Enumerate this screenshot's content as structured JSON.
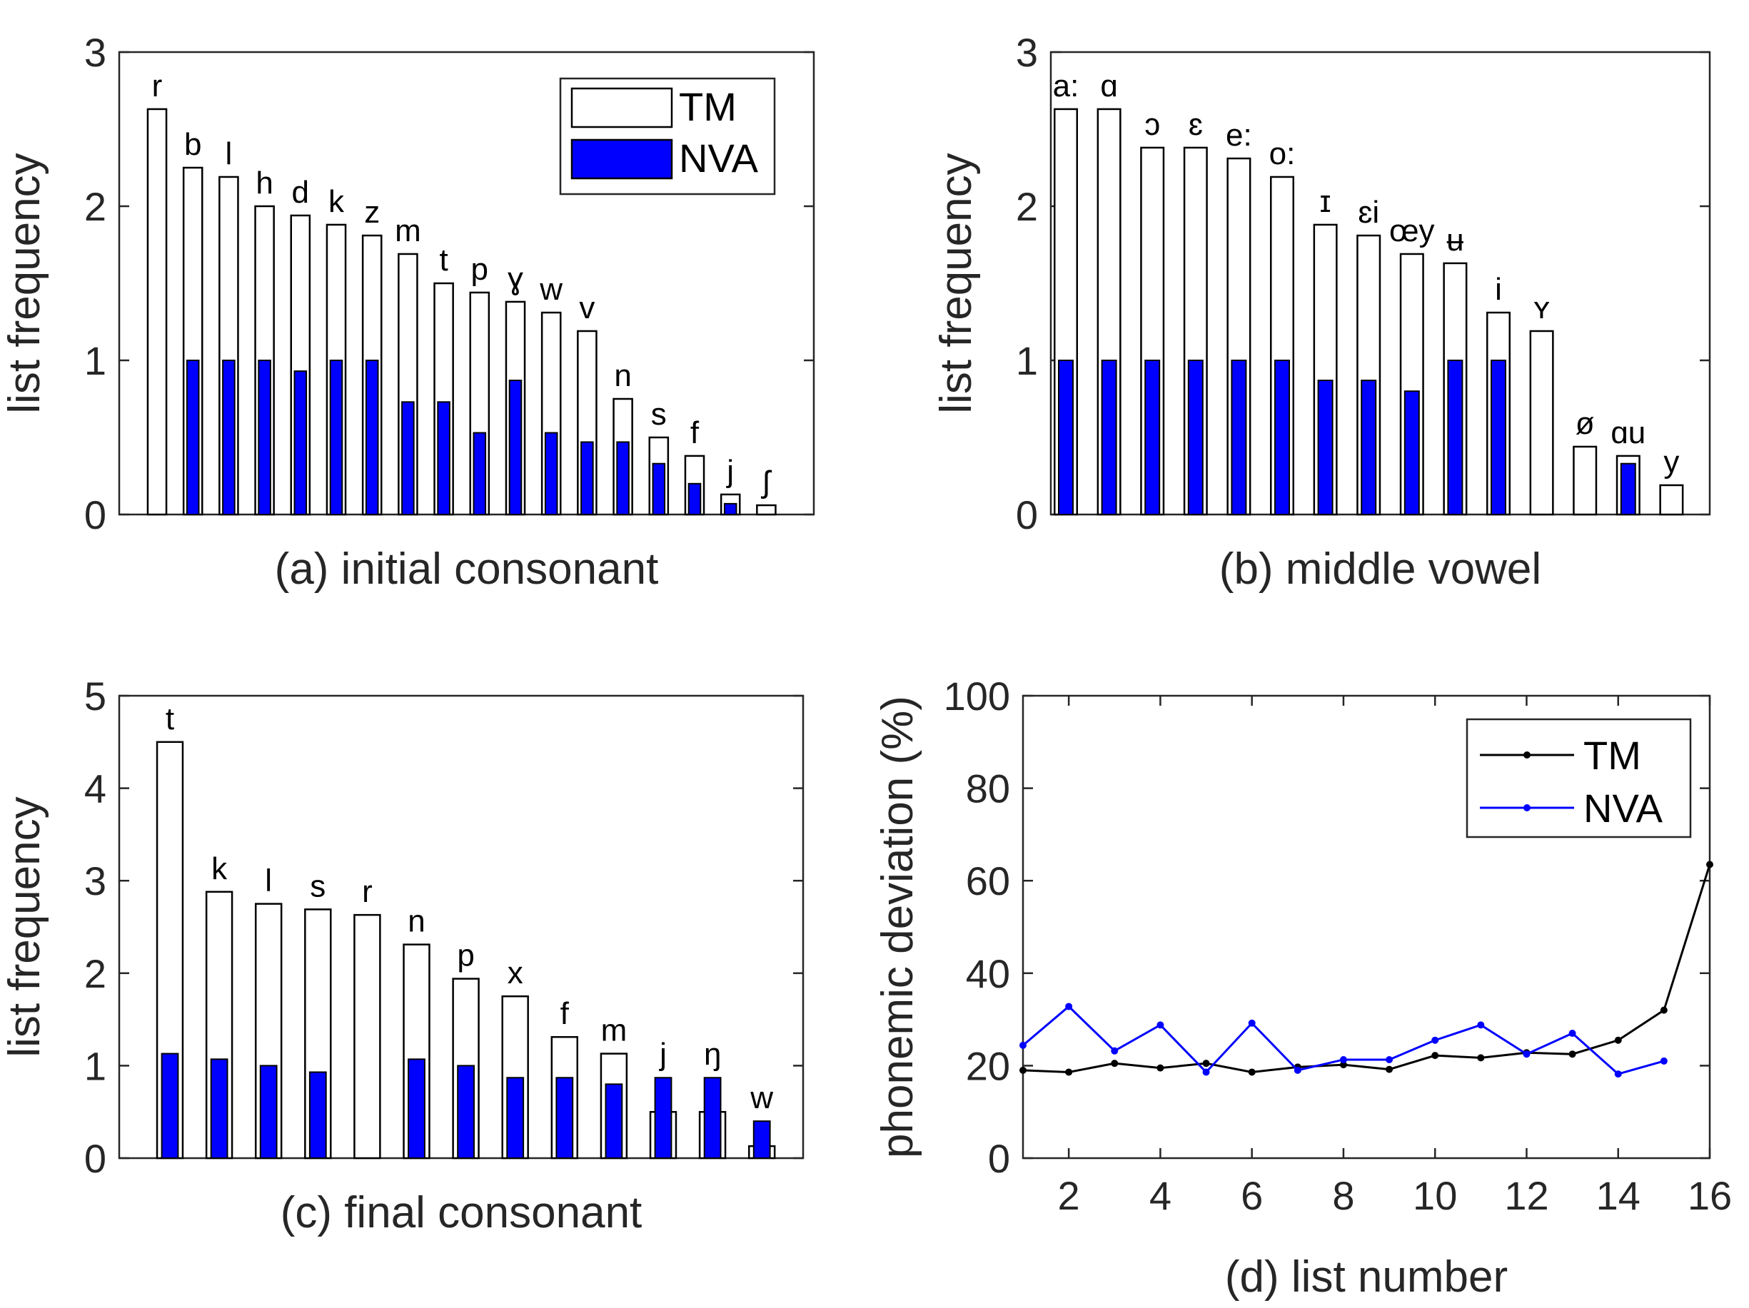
{
  "chart_data": [
    {
      "id": "a",
      "type": "bar",
      "xlabel": "(a) initial consonant",
      "ylabel": "list frequency",
      "ylim": [
        0,
        3
      ],
      "yticks": [
        0,
        1,
        2,
        3
      ],
      "legend_position": "top-right",
      "categories": [
        "r",
        "b",
        "l",
        "h",
        "d",
        "k",
        "z",
        "m",
        "t",
        "p",
        "ɣ",
        "w",
        "v",
        "n",
        "s",
        "f",
        "j",
        "ʃ"
      ],
      "series": [
        {
          "name": "TM",
          "color": "#ffffff",
          "values": [
            2.63,
            2.25,
            2.19,
            2.0,
            1.94,
            1.88,
            1.81,
            1.69,
            1.5,
            1.44,
            1.38,
            1.31,
            1.19,
            0.75,
            0.5,
            0.38,
            0.13,
            0.06
          ]
        },
        {
          "name": "NVA",
          "color": "#0000ff",
          "values": [
            0,
            1.0,
            1.0,
            1.0,
            0.93,
            1.0,
            1.0,
            0.73,
            0.73,
            0.53,
            0.87,
            0.53,
            0.47,
            0.47,
            0.33,
            0.2,
            0.07,
            0
          ]
        }
      ]
    },
    {
      "id": "b",
      "type": "bar",
      "xlabel": "(b) middle vowel",
      "ylabel": "list frequency",
      "ylim": [
        0,
        3
      ],
      "yticks": [
        0,
        1,
        2,
        3
      ],
      "categories": [
        "a:",
        "ɑ",
        "ɔ",
        "ɛ",
        "e:",
        "o:",
        "ɪ",
        "ɛi",
        "œy",
        "ʉ",
        "i",
        "ʏ",
        "ø",
        "ɑu",
        "y"
      ],
      "series": [
        {
          "name": "TM",
          "color": "#ffffff",
          "values": [
            2.63,
            2.63,
            2.38,
            2.38,
            2.31,
            2.19,
            1.88,
            1.81,
            1.69,
            1.63,
            1.31,
            1.19,
            0.44,
            0.38,
            0.19
          ]
        },
        {
          "name": "NVA",
          "color": "#0000ff",
          "values": [
            1.0,
            1.0,
            1.0,
            1.0,
            1.0,
            1.0,
            0.87,
            0.87,
            0.8,
            1.0,
            1.0,
            0,
            0,
            0.33,
            0
          ]
        }
      ]
    },
    {
      "id": "c",
      "type": "bar",
      "xlabel": "(c) final consonant",
      "ylabel": "list frequency",
      "ylim": [
        0,
        5
      ],
      "yticks": [
        0,
        1,
        2,
        3,
        4,
        5
      ],
      "categories": [
        "t",
        "k",
        "l",
        "s",
        "r",
        "n",
        "p",
        "x",
        "f",
        "m",
        "j",
        "ŋ",
        "w"
      ],
      "series": [
        {
          "name": "TM",
          "color": "#ffffff",
          "values": [
            4.5,
            2.88,
            2.75,
            2.69,
            2.63,
            2.31,
            1.94,
            1.75,
            1.31,
            1.13,
            0.5,
            0.5,
            0.13
          ]
        },
        {
          "name": "NVA",
          "color": "#0000ff",
          "values": [
            1.13,
            1.07,
            1.0,
            0.93,
            0,
            1.07,
            1.0,
            0.87,
            0.87,
            0.8,
            0.87,
            0.87,
            0.4
          ]
        }
      ]
    },
    {
      "id": "d",
      "type": "line",
      "xlabel": "(d) list number",
      "ylabel": "phonemic deviation (%)",
      "xlim": [
        1,
        16
      ],
      "ylim": [
        0,
        100
      ],
      "xticks": [
        2,
        4,
        6,
        8,
        10,
        12,
        14,
        16
      ],
      "yticks": [
        0,
        20,
        40,
        60,
        80,
        100
      ],
      "legend_position": "top-right",
      "x": [
        1,
        2,
        3,
        4,
        5,
        6,
        7,
        8,
        9,
        10,
        11,
        12,
        13,
        14,
        15,
        16
      ],
      "series": [
        {
          "name": "TM",
          "color": "#000000",
          "values": [
            19,
            18.6,
            20.5,
            19.5,
            20.5,
            18.6,
            19.7,
            20.2,
            19.2,
            22.2,
            21.7,
            22.8,
            22.5,
            25.5,
            32,
            63.5
          ]
        },
        {
          "name": "NVA",
          "color": "#0000ff",
          "values": [
            24.4,
            32.8,
            23.2,
            28.8,
            18.6,
            29.2,
            19,
            21.3,
            21.3,
            25.5,
            28.8,
            22.5,
            27,
            18.2,
            21,
            null
          ]
        }
      ]
    }
  ]
}
